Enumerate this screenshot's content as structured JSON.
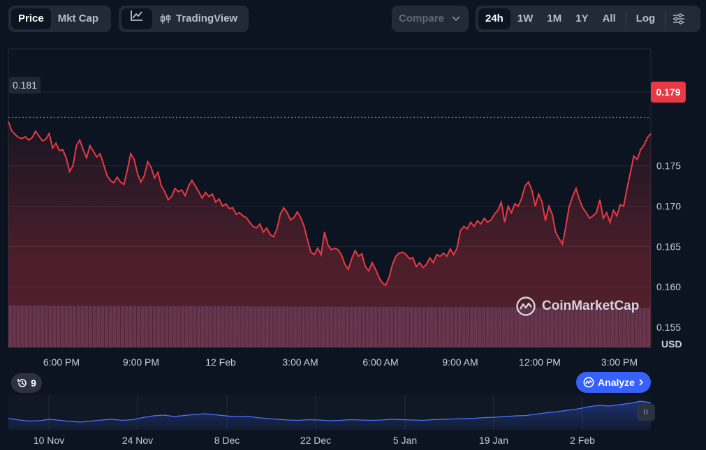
{
  "toolbar": {
    "type_tabs": [
      {
        "label": "Price",
        "active": true
      },
      {
        "label": "Mkt Cap",
        "active": false
      }
    ],
    "tools": {
      "line_icon": "line-chart-icon",
      "tradingview_label": "TradingView",
      "tradingview_icon": "candlestick-icon"
    },
    "compare_label": "Compare",
    "ranges": [
      {
        "label": "24h",
        "active": true
      },
      {
        "label": "1W",
        "active": false
      },
      {
        "label": "1M",
        "active": false
      },
      {
        "label": "1Y",
        "active": false
      },
      {
        "label": "All",
        "active": false
      }
    ],
    "log_label": "Log",
    "settings_icon": "sliders-icon"
  },
  "chart_data": {
    "type": "line",
    "y_ticks": [
      "0.155",
      "0.160",
      "0.165",
      "0.170",
      "0.175"
    ],
    "ylim": [
      0.1525,
      0.1895
    ],
    "x_ticks": [
      "6:00 PM",
      "9:00 PM",
      "12 Feb",
      "3:00 AM",
      "6:00 AM",
      "9:00 AM",
      "12:00 PM",
      "3:00 PM"
    ],
    "open_price": "0.181",
    "open_value": 0.181,
    "current_price": "0.179",
    "currency": "USD",
    "series": [
      {
        "values": [
          0.1805,
          0.1793,
          0.1789,
          0.1785,
          0.1784,
          0.1786,
          0.1782,
          0.1785,
          0.1793,
          0.1787,
          0.1781,
          0.1783,
          0.179,
          0.1772,
          0.1778,
          0.1769,
          0.177,
          0.176,
          0.1743,
          0.175,
          0.1775,
          0.1782,
          0.177,
          0.176,
          0.1775,
          0.1768,
          0.1761,
          0.1765,
          0.1752,
          0.1738,
          0.1732,
          0.1729,
          0.1736,
          0.173,
          0.1727,
          0.1745,
          0.1765,
          0.1758,
          0.174,
          0.173,
          0.1738,
          0.1755,
          0.1748,
          0.1735,
          0.1742,
          0.1725,
          0.1718,
          0.1708,
          0.1712,
          0.1722,
          0.1718,
          0.172,
          0.1713,
          0.1725,
          0.1732,
          0.1725,
          0.1718,
          0.171,
          0.1717,
          0.1712,
          0.1715,
          0.1705,
          0.1709,
          0.17,
          0.1703,
          0.1697,
          0.1698,
          0.169,
          0.1692,
          0.1688,
          0.1686,
          0.168,
          0.1675,
          0.1673,
          0.1678,
          0.1668,
          0.1673,
          0.1665,
          0.1662,
          0.1672,
          0.169,
          0.1698,
          0.1692,
          0.1683,
          0.1686,
          0.1693,
          0.1686,
          0.1675,
          0.1658,
          0.1643,
          0.164,
          0.1648,
          0.164,
          0.1668,
          0.1652,
          0.1646,
          0.1648,
          0.1646,
          0.164,
          0.1628,
          0.1622,
          0.1635,
          0.1645,
          0.1638,
          0.1641,
          0.1625,
          0.162,
          0.163,
          0.1622,
          0.1612,
          0.1605,
          0.1602,
          0.1612,
          0.1628,
          0.1638,
          0.1642,
          0.1643,
          0.164,
          0.1635,
          0.1636,
          0.1625,
          0.163,
          0.1624,
          0.1628,
          0.1636,
          0.163,
          0.164,
          0.1638,
          0.1642,
          0.1638,
          0.1647,
          0.164,
          0.1648,
          0.167,
          0.1675,
          0.1672,
          0.168,
          0.1675,
          0.1682,
          0.1678,
          0.1685,
          0.168,
          0.1683,
          0.169,
          0.1695,
          0.1705,
          0.168,
          0.17,
          0.1692,
          0.1703,
          0.17,
          0.171,
          0.1725,
          0.173,
          0.172,
          0.17,
          0.1715,
          0.1705,
          0.1682,
          0.17,
          0.169,
          0.1668,
          0.166,
          0.1653,
          0.1675,
          0.17,
          0.1712,
          0.1722,
          0.1708,
          0.1698,
          0.1692,
          0.1685,
          0.1688,
          0.1692,
          0.1708,
          0.1685,
          0.1692,
          0.168,
          0.1695,
          0.1688,
          0.1702,
          0.17,
          0.1722,
          0.1742,
          0.1762,
          0.1758,
          0.177,
          0.1776,
          0.1785,
          0.179
        ]
      }
    ],
    "volume_note": "volume",
    "volume": [
      0.85,
      0.82,
      0.8,
      0.8,
      0.79,
      0.78,
      0.76,
      0.74,
      0.73,
      0.72,
      0.7,
      0.69,
      0.68,
      0.66,
      0.65,
      0.64
    ],
    "navigator": {
      "x_ticks": [
        "10 Nov",
        "24 Nov",
        "8 Dec",
        "22 Dec",
        "5 Jan",
        "19 Jan",
        "2 Feb"
      ],
      "values": [
        0.203,
        0.198,
        0.195,
        0.196,
        0.2,
        0.197,
        0.194,
        0.192,
        0.195,
        0.198,
        0.2,
        0.197,
        0.199,
        0.205,
        0.21,
        0.212,
        0.208,
        0.211,
        0.214,
        0.216,
        0.213,
        0.21,
        0.207,
        0.209,
        0.205,
        0.202,
        0.2,
        0.198,
        0.197,
        0.199,
        0.198,
        0.196,
        0.197,
        0.199,
        0.198,
        0.197,
        0.198,
        0.2,
        0.199,
        0.198,
        0.197,
        0.199,
        0.2,
        0.201,
        0.202,
        0.203,
        0.205,
        0.206,
        0.208,
        0.21,
        0.211,
        0.215,
        0.219,
        0.222,
        0.226,
        0.23,
        0.236,
        0.24,
        0.238,
        0.242,
        0.246,
        0.252,
        0.248
      ]
    }
  },
  "history_badge": {
    "icon": "history-icon",
    "count": "9"
  },
  "analyze": {
    "label": "Analyze",
    "icon": "coinmarketcap-logo-icon",
    "chevron": "chevron-right-icon"
  },
  "watermark": {
    "text": "CoinMarketCap"
  },
  "navigator_handle": "II"
}
